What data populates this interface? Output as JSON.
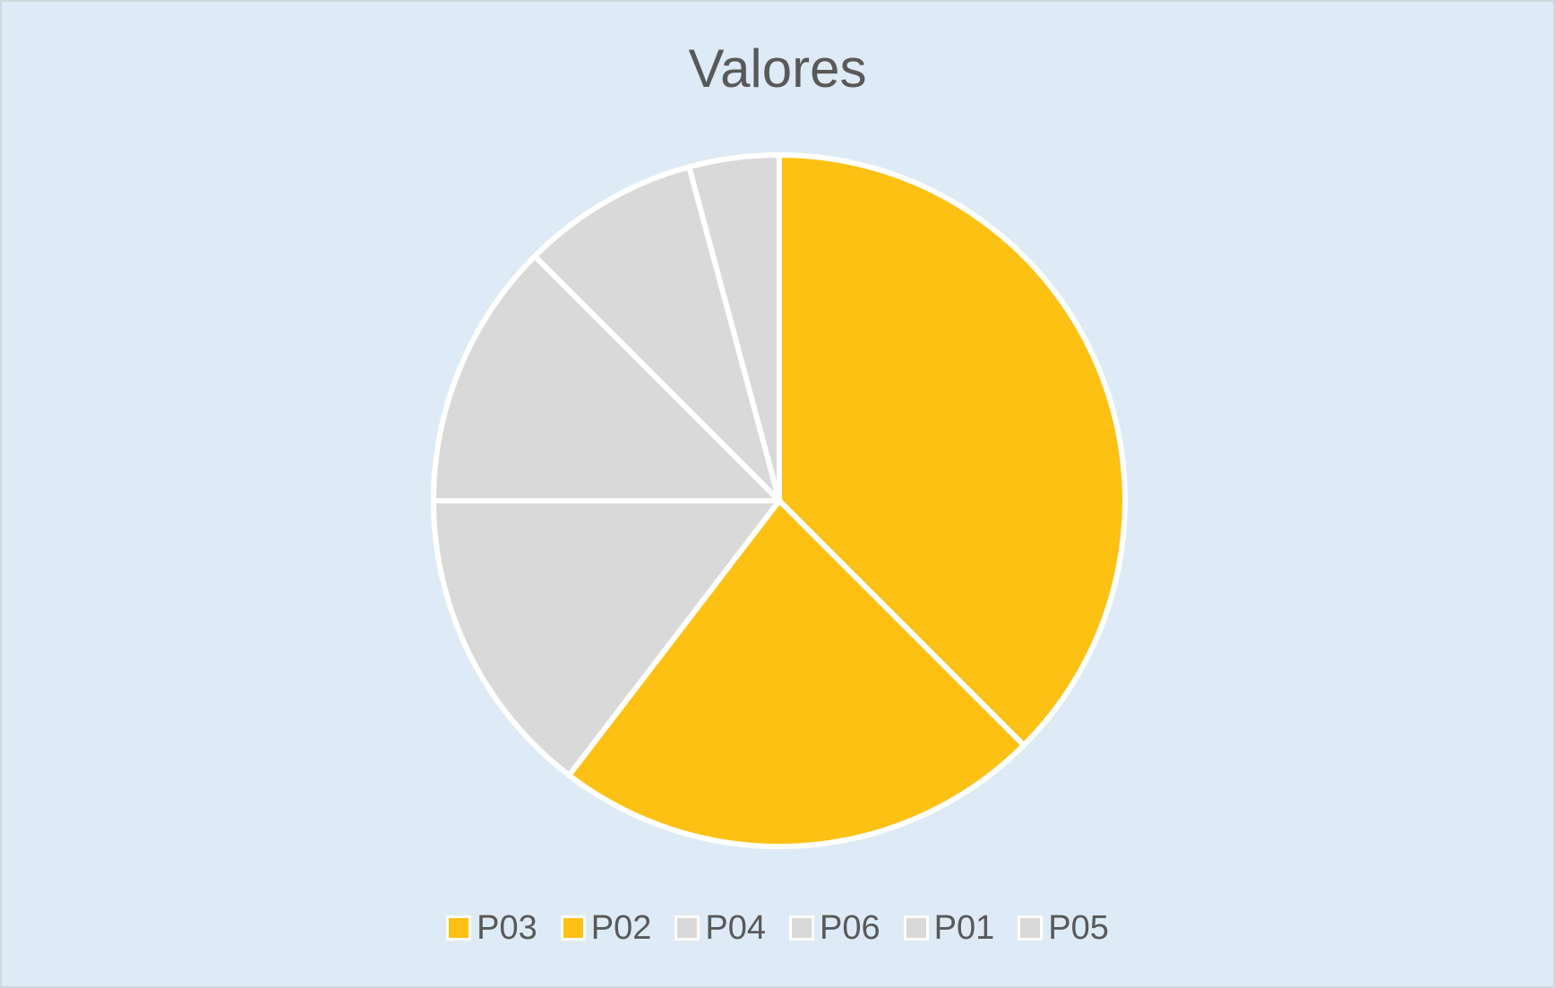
{
  "chart_data": {
    "type": "pie",
    "title": "Valores",
    "slices": [
      {
        "label": "P03",
        "value": 37.5,
        "color": "#fdc114"
      },
      {
        "label": "P02",
        "value": 22.9,
        "color": "#fdc114"
      },
      {
        "label": "P04",
        "value": 14.6,
        "color": "#d9d9d9"
      },
      {
        "label": "P06",
        "value": 12.5,
        "color": "#d9d9d9"
      },
      {
        "label": "P01",
        "value": 8.3,
        "color": "#d9d9d9"
      },
      {
        "label": "P05",
        "value": 4.2,
        "color": "#d9d9d9"
      }
    ],
    "legend_position": "bottom",
    "start_angle_deg": 0,
    "direction": "clockwise",
    "slice_border_color": "#ffffff",
    "background_color": "#deebf7"
  }
}
